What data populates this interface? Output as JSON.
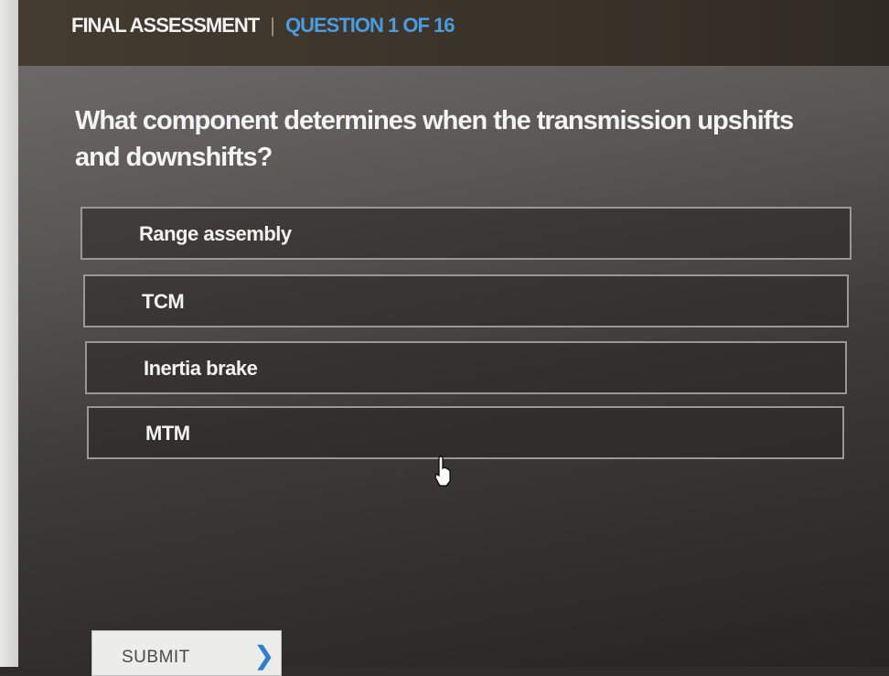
{
  "header": {
    "section": "FINAL ASSESSMENT",
    "separator": "|",
    "progress": "QUESTION 1 OF 16"
  },
  "question": {
    "text": "What component determines when the transmission upshifts and downshifts?"
  },
  "options": [
    {
      "label": "Range assembly"
    },
    {
      "label": "TCM"
    },
    {
      "label": "Inertia brake"
    },
    {
      "label": "MTM"
    }
  ],
  "submit": {
    "label": "SUBMIT",
    "icon": "chevron-right-icon"
  },
  "colors": {
    "accent": "#4a9be0",
    "header_bg": "#3a3329"
  }
}
